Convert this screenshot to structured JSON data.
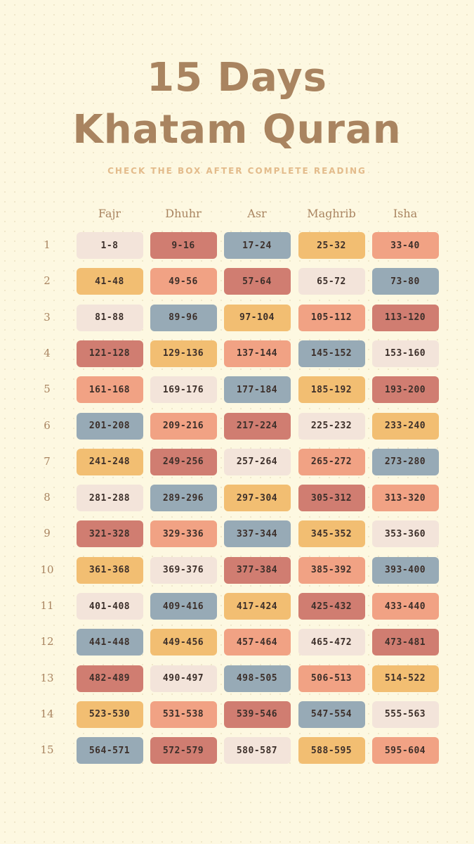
{
  "header": {
    "title_lines": [
      "15 Days",
      "Khatam Quran"
    ],
    "subtitle": "CHECK THE BOX AFTER COMPLETE READING"
  },
  "table": {
    "columns": [
      "Fajr",
      "Dhuhr",
      "Asr",
      "Maghrib",
      "Isha"
    ],
    "rows": [
      {
        "label": "1",
        "cells": [
          "1-8",
          "9-16",
          "17-24",
          "25-32",
          "33-40"
        ]
      },
      {
        "label": "2",
        "cells": [
          "41-48",
          "49-56",
          "57-64",
          "65-72",
          "73-80"
        ]
      },
      {
        "label": "3",
        "cells": [
          "81-88",
          "89-96",
          "97-104",
          "105-112",
          "113-120"
        ]
      },
      {
        "label": "4",
        "cells": [
          "121-128",
          "129-136",
          "137-144",
          "145-152",
          "153-160"
        ]
      },
      {
        "label": "5",
        "cells": [
          "161-168",
          "169-176",
          "177-184",
          "185-192",
          "193-200"
        ]
      },
      {
        "label": "6",
        "cells": [
          "201-208",
          "209-216",
          "217-224",
          "225-232",
          "233-240"
        ]
      },
      {
        "label": "7",
        "cells": [
          "241-248",
          "249-256",
          "257-264",
          "265-272",
          "273-280"
        ]
      },
      {
        "label": "8",
        "cells": [
          "281-288",
          "289-296",
          "297-304",
          "305-312",
          "313-320"
        ]
      },
      {
        "label": "9",
        "cells": [
          "321-328",
          "329-336",
          "337-344",
          "345-352",
          "353-360"
        ]
      },
      {
        "label": "10",
        "cells": [
          "361-368",
          "369-376",
          "377-384",
          "385-392",
          "393-400"
        ]
      },
      {
        "label": "11",
        "cells": [
          "401-408",
          "409-416",
          "417-424",
          "425-432",
          "433-440"
        ]
      },
      {
        "label": "12",
        "cells": [
          "441-448",
          "449-456",
          "457-464",
          "465-472",
          "473-481"
        ]
      },
      {
        "label": "13",
        "cells": [
          "482-489",
          "490-497",
          "498-505",
          "506-513",
          "514-522"
        ]
      },
      {
        "label": "14",
        "cells": [
          "523-530",
          "531-538",
          "539-546",
          "547-554",
          "555-563"
        ]
      },
      {
        "label": "15",
        "cells": [
          "564-571",
          "572-579",
          "580-587",
          "588-595",
          "595-604"
        ]
      }
    ]
  }
}
